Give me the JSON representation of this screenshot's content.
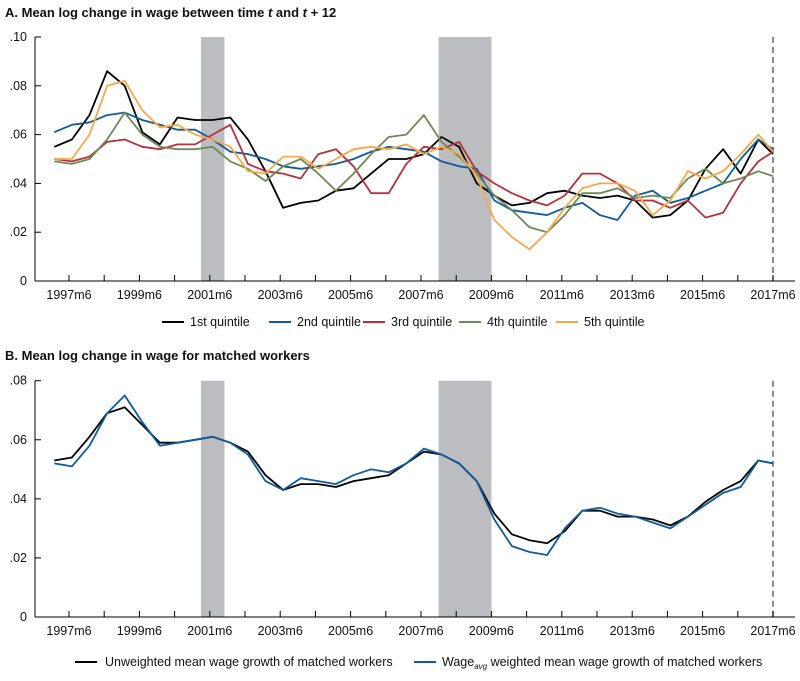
{
  "chart_data": [
    {
      "type": "line",
      "title": "A. Mean log change in wage between time t and t + 12",
      "title_parts": [
        "A. Mean log change in wage between time ",
        "t",
        " and ",
        "t",
        " + 12"
      ],
      "xlabel": "",
      "ylabel": "",
      "ylim": [
        0,
        0.1
      ],
      "yticks": [
        0,
        0.02,
        0.04,
        0.06,
        0.08,
        0.1
      ],
      "ytick_labels": [
        "0",
        ".02",
        ".04",
        ".06",
        ".08",
        ".10"
      ],
      "xtick_labels": [
        "1997m6",
        "1999m6",
        "2001m6",
        "2003m6",
        "2005m6",
        "2007m6",
        "2009m6",
        "2011m6",
        "2013m6",
        "2015m6",
        "2017m6"
      ],
      "recessions": [
        [
          "2001m3",
          "2001m11"
        ],
        [
          "2007m12",
          "2009m6"
        ]
      ],
      "recession_color": "#bcbdc0",
      "dashed_vline": "2017m6",
      "grid": false,
      "legend_position": "bottom",
      "x": [
        "1997m1",
        "1997m7",
        "1998m1",
        "1998m7",
        "1999m1",
        "1999m7",
        "2000m1",
        "2000m7",
        "2001m1",
        "2001m7",
        "2002m1",
        "2002m7",
        "2003m1",
        "2003m7",
        "2004m1",
        "2004m7",
        "2005m1",
        "2005m7",
        "2006m1",
        "2006m7",
        "2007m1",
        "2007m7",
        "2008m1",
        "2008m7",
        "2009m1",
        "2009m7",
        "2010m1",
        "2010m7",
        "2011m1",
        "2011m7",
        "2012m1",
        "2012m7",
        "2013m1",
        "2013m7",
        "2014m1",
        "2014m7",
        "2015m1",
        "2015m7",
        "2016m1",
        "2016m7",
        "2017m1",
        "2017m6"
      ],
      "series": [
        {
          "name": "1st quintile",
          "color": "#000000",
          "values": [
            0.055,
            0.058,
            0.068,
            0.086,
            0.08,
            0.061,
            0.056,
            0.067,
            0.066,
            0.066,
            0.067,
            0.058,
            0.045,
            0.03,
            0.032,
            0.033,
            0.037,
            0.038,
            0.044,
            0.05,
            0.05,
            0.052,
            0.059,
            0.055,
            0.04,
            0.035,
            0.031,
            0.032,
            0.036,
            0.037,
            0.035,
            0.034,
            0.035,
            0.033,
            0.026,
            0.027,
            0.033,
            0.046,
            0.054,
            0.044,
            0.058,
            0.052
          ]
        },
        {
          "name": "2nd quintile",
          "color": "#0f5b9c",
          "values": [
            0.061,
            0.064,
            0.065,
            0.068,
            0.069,
            0.066,
            0.064,
            0.062,
            0.062,
            0.058,
            0.053,
            0.052,
            0.05,
            0.047,
            0.046,
            0.047,
            0.048,
            0.05,
            0.053,
            0.055,
            0.054,
            0.053,
            0.049,
            0.047,
            0.046,
            0.033,
            0.029,
            0.028,
            0.027,
            0.03,
            0.032,
            0.027,
            0.025,
            0.035,
            0.037,
            0.032,
            0.034,
            0.037,
            0.04,
            0.05,
            0.058,
            0.054
          ]
        },
        {
          "name": "3rd quintile",
          "color": "#b5323c",
          "values": [
            0.05,
            0.049,
            0.051,
            0.057,
            0.058,
            0.055,
            0.054,
            0.056,
            0.056,
            0.06,
            0.064,
            0.048,
            0.045,
            0.044,
            0.042,
            0.052,
            0.054,
            0.047,
            0.036,
            0.036,
            0.048,
            0.055,
            0.054,
            0.057,
            0.045,
            0.04,
            0.036,
            0.033,
            0.031,
            0.035,
            0.044,
            0.044,
            0.04,
            0.033,
            0.033,
            0.03,
            0.033,
            0.026,
            0.028,
            0.04,
            0.049,
            0.053
          ]
        },
        {
          "name": "4th quintile",
          "color": "#6e8a55",
          "values": [
            0.049,
            0.048,
            0.05,
            0.058,
            0.069,
            0.06,
            0.055,
            0.054,
            0.054,
            0.055,
            0.049,
            0.046,
            0.041,
            0.047,
            0.05,
            0.044,
            0.037,
            0.044,
            0.052,
            0.059,
            0.06,
            0.068,
            0.057,
            0.051,
            0.044,
            0.035,
            0.029,
            0.022,
            0.02,
            0.027,
            0.036,
            0.036,
            0.038,
            0.034,
            0.035,
            0.034,
            0.042,
            0.046,
            0.04,
            0.042,
            0.045,
            0.043
          ]
        },
        {
          "name": "5th quintile",
          "color": "#f7a94a",
          "values": [
            0.05,
            0.05,
            0.06,
            0.08,
            0.082,
            0.07,
            0.063,
            0.064,
            0.06,
            0.058,
            0.055,
            0.045,
            0.044,
            0.051,
            0.051,
            0.046,
            0.05,
            0.054,
            0.055,
            0.054,
            0.056,
            0.052,
            0.055,
            0.052,
            0.043,
            0.025,
            0.018,
            0.013,
            0.02,
            0.03,
            0.038,
            0.04,
            0.04,
            0.037,
            0.027,
            0.033,
            0.045,
            0.042,
            0.045,
            0.052,
            0.06,
            0.053
          ]
        }
      ]
    },
    {
      "type": "line",
      "title": "B. Mean log change in wage for matched workers",
      "xlabel": "",
      "ylabel": "",
      "ylim": [
        0,
        0.08
      ],
      "yticks": [
        0,
        0.02,
        0.04,
        0.06,
        0.08
      ],
      "ytick_labels": [
        "0",
        ".02",
        ".04",
        ".06",
        ".08"
      ],
      "xtick_labels": [
        "1997m6",
        "1999m6",
        "2001m6",
        "2003m6",
        "2005m6",
        "2007m6",
        "2009m6",
        "2011m6",
        "2013m6",
        "2015m6",
        "2017m6"
      ],
      "recessions": [
        [
          "2001m3",
          "2001m11"
        ],
        [
          "2007m12",
          "2009m6"
        ]
      ],
      "recession_color": "#bcbdc0",
      "dashed_vline": "2017m6",
      "grid": false,
      "legend_position": "bottom",
      "x": [
        "1997m1",
        "1997m7",
        "1998m1",
        "1998m7",
        "1999m1",
        "1999m7",
        "2000m1",
        "2000m7",
        "2001m1",
        "2001m7",
        "2002m1",
        "2002m7",
        "2003m1",
        "2003m7",
        "2004m1",
        "2004m7",
        "2005m1",
        "2005m7",
        "2006m1",
        "2006m7",
        "2007m1",
        "2007m7",
        "2008m1",
        "2008m7",
        "2009m1",
        "2009m7",
        "2010m1",
        "2010m7",
        "2011m1",
        "2011m7",
        "2012m1",
        "2012m7",
        "2013m1",
        "2013m7",
        "2014m1",
        "2014m7",
        "2015m1",
        "2015m7",
        "2016m1",
        "2016m7",
        "2017m1",
        "2017m6"
      ],
      "series": [
        {
          "name": "Unweighted mean wage growth of matched workers",
          "name_parts": [
            "Unweighted mean wage growth of matched workers"
          ],
          "color": "#000000",
          "values": [
            0.053,
            0.054,
            0.061,
            0.069,
            0.071,
            0.065,
            0.059,
            0.059,
            0.06,
            0.061,
            0.059,
            0.056,
            0.048,
            0.043,
            0.045,
            0.045,
            0.044,
            0.046,
            0.047,
            0.048,
            0.052,
            0.056,
            0.055,
            0.052,
            0.046,
            0.035,
            0.028,
            0.026,
            0.025,
            0.029,
            0.036,
            0.036,
            0.034,
            0.034,
            0.033,
            0.031,
            0.034,
            0.039,
            0.043,
            0.046,
            0.053,
            0.052
          ]
        },
        {
          "name": "Wage avg weighted mean wage growth of matched workers",
          "name_parts": [
            "Wage",
            "avg",
            " weighted mean wage growth of matched workers"
          ],
          "color": "#0f5b9c",
          "values": [
            0.052,
            0.051,
            0.058,
            0.069,
            0.075,
            0.066,
            0.058,
            0.059,
            0.06,
            0.061,
            0.059,
            0.055,
            0.046,
            0.043,
            0.047,
            0.046,
            0.045,
            0.048,
            0.05,
            0.049,
            0.052,
            0.057,
            0.055,
            0.052,
            0.046,
            0.033,
            0.024,
            0.022,
            0.021,
            0.03,
            0.036,
            0.037,
            0.035,
            0.034,
            0.032,
            0.03,
            0.034,
            0.038,
            0.042,
            0.044,
            0.053,
            0.052
          ]
        }
      ]
    }
  ]
}
